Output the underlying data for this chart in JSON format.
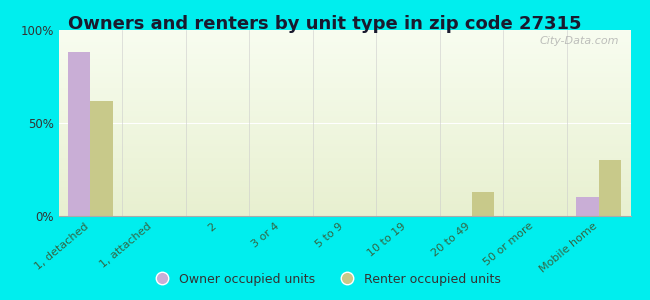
{
  "title": "Owners and renters by unit type in zip code 27315",
  "categories": [
    "1, detached",
    "1, attached",
    "2",
    "3 or 4",
    "5 to 9",
    "10 to 19",
    "20 to 49",
    "50 or more",
    "Mobile home"
  ],
  "owner_values": [
    88,
    0,
    0,
    0,
    0,
    0,
    0,
    0,
    10
  ],
  "renter_values": [
    62,
    0,
    0,
    0,
    0,
    0,
    13,
    0,
    30
  ],
  "owner_color": "#c9aed6",
  "renter_color": "#c8c98a",
  "background_color": "#00eeee",
  "ylim": [
    0,
    100
  ],
  "yticks": [
    0,
    50,
    100
  ],
  "yticklabels": [
    "0%",
    "50%",
    "100%"
  ],
  "bar_width": 0.35,
  "title_fontsize": 13,
  "title_color": "#1a1a2e",
  "tick_label_color": "#336644",
  "legend_labels": [
    "Owner occupied units",
    "Renter occupied units"
  ],
  "watermark": "City-Data.com"
}
